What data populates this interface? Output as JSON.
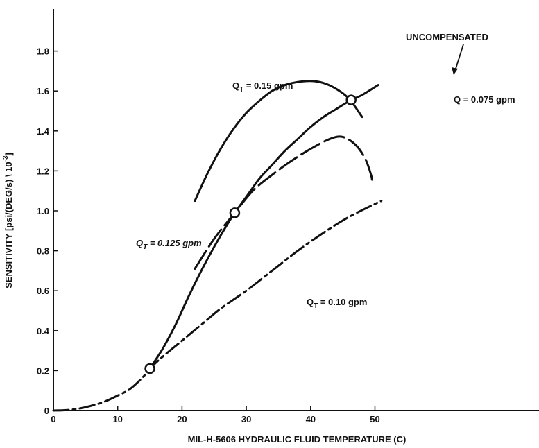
{
  "chart_data": {
    "type": "line",
    "title": "",
    "xlabel": "MIL-H-5606 HYDRAULIC FLUID TEMPERATURE (C)",
    "ylabel": "SENSITIVITY [psi/(DEG/s) \\ 10",
    "ylabel_exp": "-3",
    "ylabel_end": "]",
    "xlim": [
      0,
      60
    ],
    "ylim": [
      0,
      2.0
    ],
    "x_ticks": [
      "0",
      "10",
      "20",
      "30",
      "40",
      "50"
    ],
    "y_ticks": [
      "0",
      "0.2",
      "0.4",
      "0.6",
      "0.8",
      "1.0",
      "1.2",
      "1.4",
      "1.6",
      "1.8"
    ],
    "grid": false,
    "series": [
      {
        "name": "UNCOMPENSATED",
        "style": "solid",
        "x": [
          15,
          17,
          19,
          21,
          23,
          25,
          27,
          28.2,
          30,
          32,
          34,
          36,
          38,
          40,
          42,
          44,
          46.3,
          48,
          50.5
        ],
        "y": [
          0.21,
          0.31,
          0.43,
          0.57,
          0.7,
          0.82,
          0.93,
          0.99,
          1.07,
          1.16,
          1.23,
          1.3,
          1.36,
          1.42,
          1.47,
          1.51,
          1.555,
          1.58,
          1.63
        ]
      },
      {
        "name": "Q_T = 0.15 gpm",
        "style": "solid",
        "x": [
          22,
          24,
          26,
          28,
          30,
          32,
          34,
          36,
          38,
          40,
          42,
          44,
          46,
          48
        ],
        "y": [
          1.05,
          1.19,
          1.31,
          1.41,
          1.49,
          1.55,
          1.6,
          1.63,
          1.645,
          1.65,
          1.64,
          1.61,
          1.56,
          1.47
        ]
      },
      {
        "name": "Q_T = 0.125 gpm",
        "style": "long-dash",
        "x": [
          22,
          25,
          28.2,
          31,
          34,
          37,
          40,
          43,
          45,
          47,
          48.5,
          49.4,
          49.6
        ],
        "y": [
          0.71,
          0.86,
          0.99,
          1.1,
          1.18,
          1.25,
          1.31,
          1.36,
          1.37,
          1.33,
          1.26,
          1.18,
          1.14
        ]
      },
      {
        "name": "Q_T = 0.10 gpm",
        "style": "dash-dot",
        "x": [
          0,
          2,
          4,
          6,
          8,
          10,
          12,
          14,
          15,
          17,
          20,
          23,
          26,
          30,
          34,
          38,
          42,
          46,
          51
        ],
        "y": [
          0.0,
          0.002,
          0.01,
          0.025,
          0.045,
          0.075,
          0.11,
          0.17,
          0.21,
          0.27,
          0.35,
          0.43,
          0.51,
          0.6,
          0.7,
          0.8,
          0.89,
          0.97,
          1.05
        ]
      }
    ],
    "markers": [
      {
        "x": 15,
        "y": 0.21
      },
      {
        "x": 28.2,
        "y": 0.99
      },
      {
        "x": 46.3,
        "y": 1.555
      }
    ],
    "annotations": [
      {
        "id": "uncomp",
        "text": "UNCOMPENSATED",
        "sub": "",
        "rest": ""
      },
      {
        "id": "q15",
        "text": "Q",
        "sub": "T",
        "rest": " = 0.15 gpm"
      },
      {
        "id": "q075",
        "text": "Q = 0.075 gpm",
        "sub": "",
        "rest": ""
      },
      {
        "id": "q125",
        "text": "Q",
        "sub": "T",
        "rest": " = 0.125 gpm"
      },
      {
        "id": "q10",
        "text": "Q",
        "sub": "T",
        "rest": " = 0.10 gpm"
      }
    ]
  }
}
